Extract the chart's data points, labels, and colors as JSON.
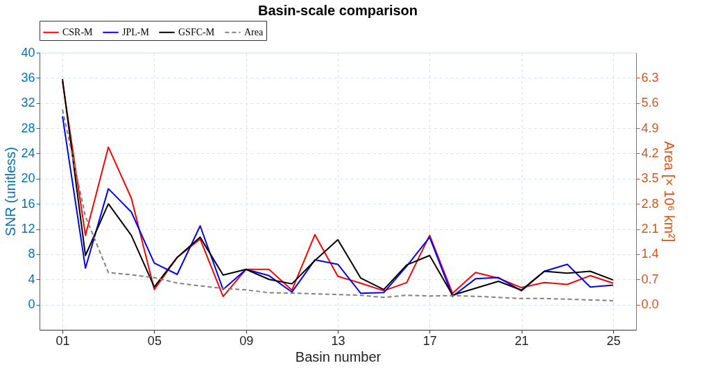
{
  "chart_data": {
    "type": "line",
    "title": "Basin-scale comparison",
    "xlabel": "Basin number",
    "ylabel": "SNR (unitless)",
    "y2label": "Area [× 10⁶ km²]",
    "x": [
      1,
      2,
      3,
      4,
      5,
      6,
      7,
      8,
      9,
      10,
      11,
      12,
      13,
      14,
      15,
      16,
      17,
      18,
      19,
      20,
      21,
      22,
      23,
      24,
      25
    ],
    "xlim": [
      0,
      26
    ],
    "xticks": [
      {
        "value": 1,
        "label": "01"
      },
      {
        "value": 5,
        "label": "05"
      },
      {
        "value": 9,
        "label": "09"
      },
      13,
      17,
      21,
      25
    ],
    "ylim": [
      -4,
      40
    ],
    "yticks": [
      0,
      4,
      8,
      12,
      16,
      20,
      24,
      28,
      32,
      36,
      40
    ],
    "y2lim": [
      -0.7,
      7.0
    ],
    "y2ticks": [
      {
        "value": 0,
        "label": "0.0"
      },
      0.7,
      1.4,
      2.1,
      2.8,
      3.5,
      4.2,
      4.9,
      5.6,
      6.3
    ],
    "grid": true,
    "legend": "top",
    "line_style": "solid",
    "marker": "none",
    "series": [
      {
        "name": "CSR-M",
        "color": "#ff0000",
        "values": [
          35.4,
          11.0,
          25.0,
          16.9,
          2.4,
          7.5,
          10.4,
          1.3,
          5.6,
          5.6,
          2.3,
          11.1,
          4.5,
          3.4,
          2.2,
          3.5,
          11.0,
          1.8,
          5.1,
          4.2,
          2.7,
          3.5,
          3.2,
          4.6,
          3.4
        ]
      },
      {
        "name": "JPL-M",
        "color": "#0000ff",
        "values": [
          29.9,
          5.8,
          18.4,
          14.7,
          6.6,
          4.8,
          12.5,
          2.4,
          5.6,
          4.6,
          2.0,
          7.1,
          6.4,
          1.8,
          1.9,
          6.1,
          10.7,
          1.3,
          4.1,
          4.3,
          2.2,
          5.3,
          6.4,
          2.8,
          3.1
        ]
      },
      {
        "name": "GSFC-M",
        "color": "#000000",
        "values": [
          35.8,
          7.8,
          16.0,
          11.0,
          2.8,
          7.5,
          10.7,
          4.7,
          5.6,
          4.0,
          3.3,
          7.0,
          10.3,
          4.2,
          2.4,
          6.3,
          7.8,
          1.5,
          2.6,
          3.7,
          2.3,
          5.3,
          5.0,
          5.3,
          3.9
        ]
      },
      {
        "name": "Area",
        "color": "#808080",
        "axis": "y2",
        "line_style": "dashed",
        "values": [
          5.42,
          2.45,
          0.89,
          0.83,
          0.75,
          0.6,
          0.52,
          0.45,
          0.41,
          0.33,
          0.32,
          0.3,
          0.28,
          0.26,
          0.2,
          0.26,
          0.24,
          0.25,
          0.23,
          0.2,
          0.17,
          0.17,
          0.15,
          0.13,
          0.11
        ]
      }
    ]
  }
}
